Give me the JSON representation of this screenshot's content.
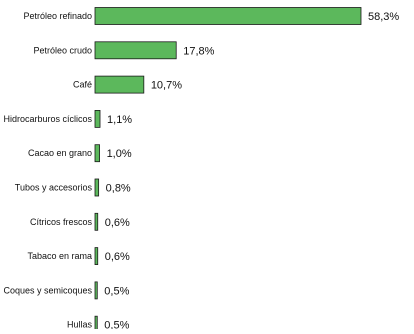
{
  "chart_data": {
    "type": "bar",
    "orientation": "horizontal",
    "categories": [
      "Petróleo refinado",
      "Petróleo crudo",
      "Café",
      "Hidrocarburos cíclicos",
      "Cacao en grano",
      "Tubos y accesorios",
      "Cítricos frescos",
      "Tabaco en rama",
      "Coques y semicoques",
      "Hullas"
    ],
    "values": [
      58.3,
      17.8,
      10.7,
      1.1,
      1.0,
      0.8,
      0.6,
      0.6,
      0.5,
      0.5
    ],
    "value_labels": [
      "58,3%",
      "17,8%",
      "10,7%",
      "1,1%",
      "1,0%",
      "0,8%",
      "0,6%",
      "0,6%",
      "0,5%",
      "0,5%"
    ],
    "title": "",
    "xlabel": "",
    "ylabel": "",
    "xlim": [
      0,
      58.3
    ],
    "grid": false,
    "legend": "none",
    "bar_color": "#5cb85c",
    "bar_edge_color": "#1a1a1a"
  }
}
